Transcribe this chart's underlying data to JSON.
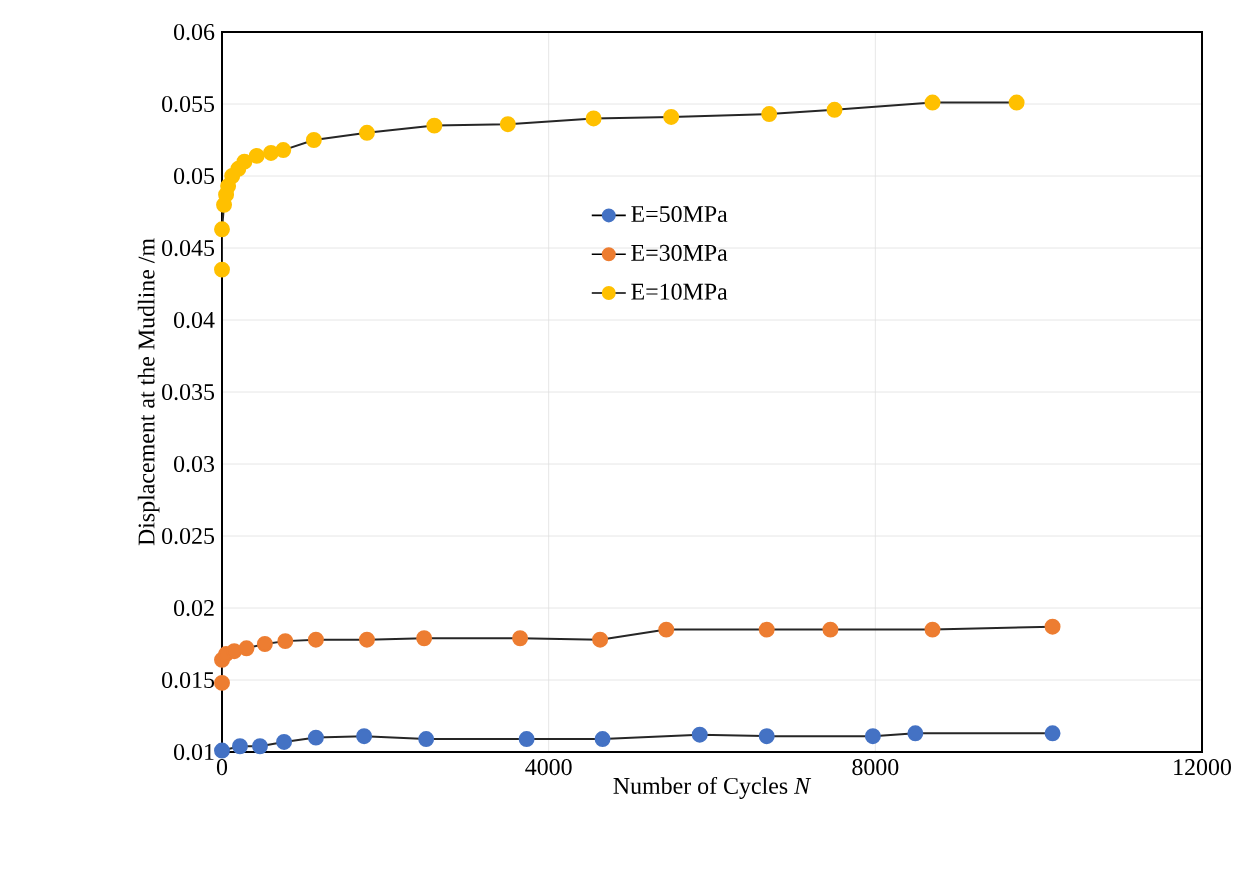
{
  "chart_data": {
    "type": "line",
    "xlabel": "Number of Cycles  *N*",
    "ylabel": "Displacement at the Mudline /m",
    "xlim": [
      0,
      12000
    ],
    "ylim": [
      0.01,
      0.06
    ],
    "xticks": [
      0,
      4000,
      8000,
      12000
    ],
    "yticks": [
      0.01,
      0.015,
      0.02,
      0.025,
      0.03,
      0.035,
      0.04,
      0.045,
      0.05,
      0.055,
      0.06
    ],
    "grid": true,
    "legend": "center",
    "marker": "circle",
    "line_style": "solid",
    "series": [
      {
        "name": "E=50MPa",
        "color": "#4472c4",
        "x": [
          0,
          220,
          465,
          760,
          1150,
          1740,
          2500,
          3730,
          4660,
          5850,
          6670,
          7970,
          8490,
          10170
        ],
        "values": [
          0.0101,
          0.0104,
          0.0104,
          0.0107,
          0.011,
          0.0111,
          0.0109,
          0.0109,
          0.0109,
          0.0112,
          0.0111,
          0.0111,
          0.0113,
          0.0113
        ]
      },
      {
        "name": "E=30MPa",
        "color": "#ed7d31",
        "x": [
          0,
          0,
          50,
          150,
          300,
          525,
          775,
          1150,
          1775,
          2475,
          3650,
          4630,
          5440,
          6670,
          7450,
          8700,
          10170
        ],
        "values": [
          0.0148,
          0.0164,
          0.0168,
          0.017,
          0.0172,
          0.0175,
          0.0177,
          0.0178,
          0.0178,
          0.0179,
          0.0179,
          0.0178,
          0.0185,
          0.0185,
          0.0185,
          0.0185,
          0.0187
        ]
      },
      {
        "name": "E=10MPa",
        "color": "#ffc000",
        "x": [
          0,
          0,
          25,
          50,
          75,
          125,
          200,
          275,
          425,
          600,
          750,
          1125,
          1775,
          2600,
          3500,
          4550,
          5500,
          6700,
          7500,
          8700,
          9730
        ],
        "values": [
          0.0435,
          0.0463,
          0.048,
          0.0487,
          0.0493,
          0.05,
          0.0505,
          0.051,
          0.0514,
          0.0516,
          0.0518,
          0.0525,
          0.053,
          0.0535,
          0.0536,
          0.054,
          0.0541,
          0.0543,
          0.0546,
          0.0551,
          0.0551
        ]
      }
    ]
  }
}
